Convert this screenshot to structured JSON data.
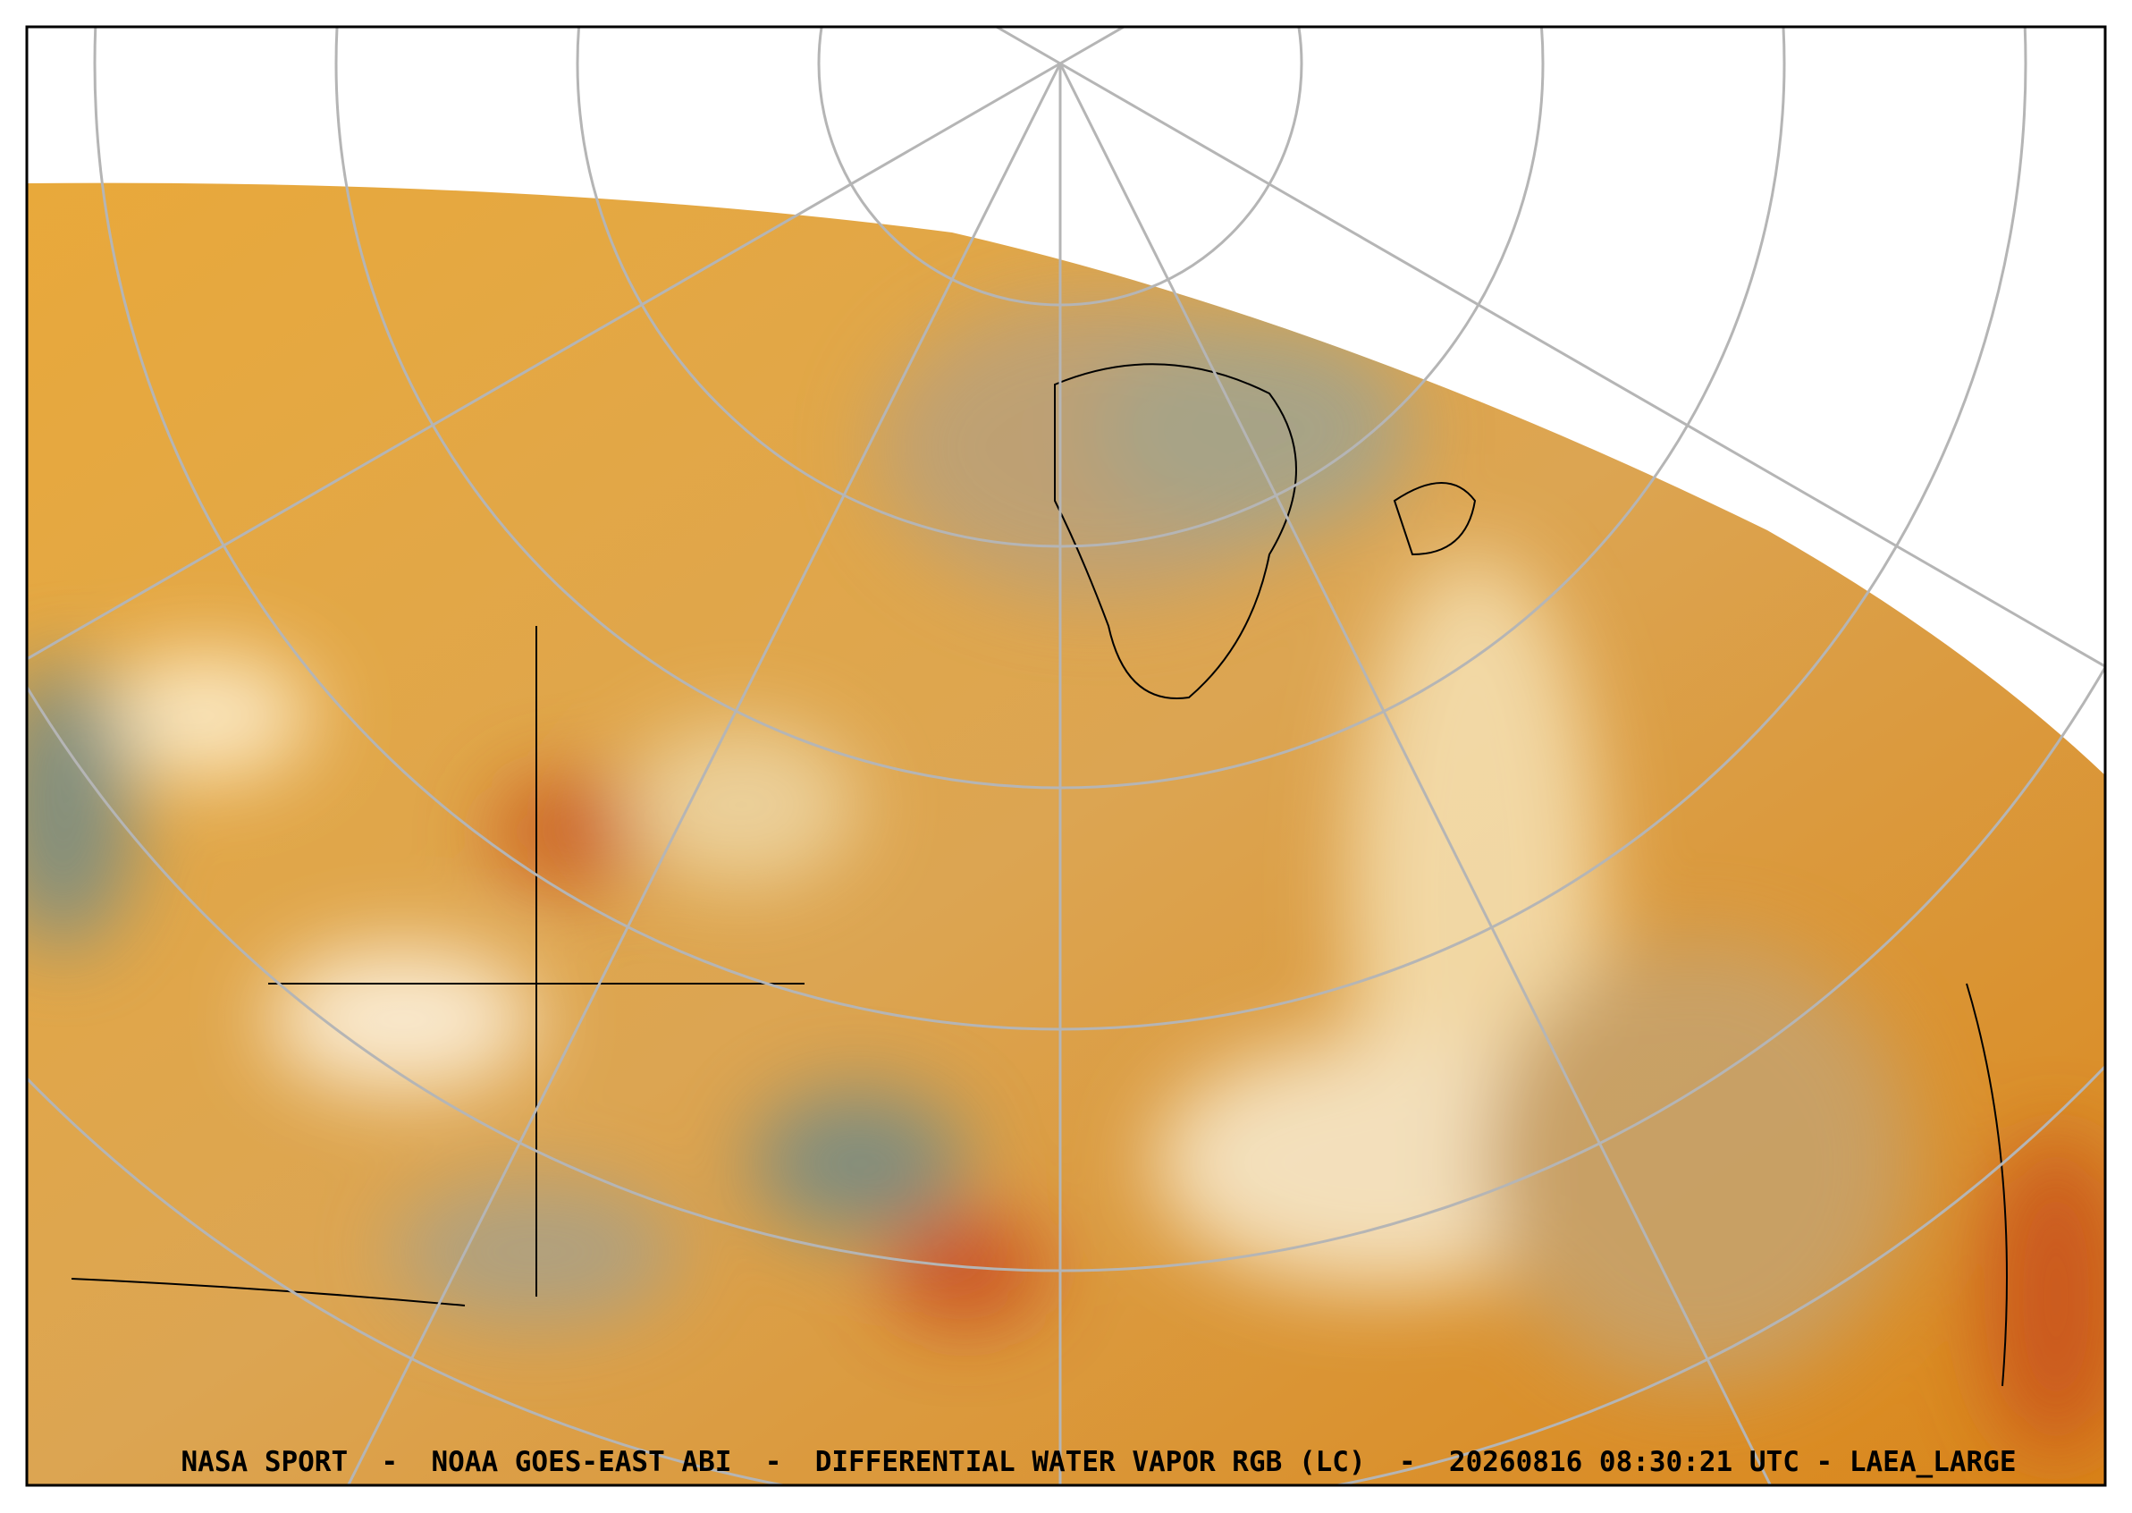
{
  "caption": "NASA SPORT  -  NOAA GOES-EAST ABI  -  DIFFERENTIAL WATER VAPOR RGB (LC)  -  20260816 08:30:21 UTC - LAEA_LARGE"
}
